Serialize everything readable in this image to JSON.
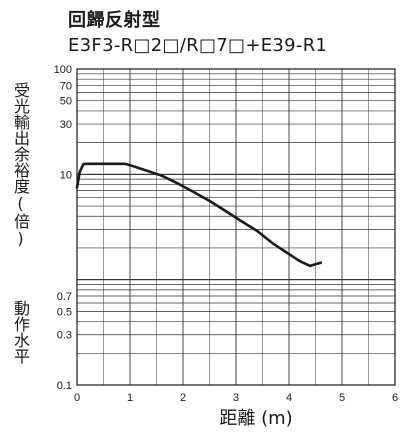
{
  "header": {
    "title": "回歸反射型",
    "subtitle": "E3F3-R□2□/R□7□+E39-R1"
  },
  "chart_data": {
    "type": "line",
    "title": "回歸反射型",
    "subtitle": "E3F3-R□2□/R□7□+E39-R1",
    "xlabel": "距離 (m)",
    "ylabel": "受光輸出余裕度(倍)",
    "operation_level_label": "動作水平",
    "x_scale": "linear",
    "y_scale": "log",
    "xlim": [
      0,
      6
    ],
    "ylim": [
      0.1,
      100
    ],
    "x_ticks": [
      "0",
      "1",
      "2",
      "3",
      "4",
      "5",
      "6"
    ],
    "y_tick_values": [
      0.1,
      0.3,
      0.5,
      0.7,
      10,
      30,
      50,
      70,
      100
    ],
    "y_tick_labels": [
      "0.1",
      "0.3",
      "0.5",
      "0.7",
      "10",
      "30",
      "50",
      "70",
      "100"
    ],
    "grid": true,
    "series": [
      {
        "name": "",
        "x": [
          0.0,
          0.05,
          0.12,
          0.2,
          0.5,
          0.9,
          1.0,
          1.3,
          1.6,
          1.9,
          2.2,
          2.5,
          2.8,
          3.1,
          3.4,
          3.7,
          4.0,
          4.2,
          4.4,
          4.5,
          4.6
        ],
        "y": [
          7.5,
          10.5,
          12.5,
          12.6,
          12.6,
          12.6,
          12.2,
          10.9,
          9.7,
          8.2,
          6.8,
          5.6,
          4.5,
          3.6,
          2.9,
          2.2,
          1.75,
          1.5,
          1.35,
          1.4,
          1.45
        ]
      }
    ]
  }
}
